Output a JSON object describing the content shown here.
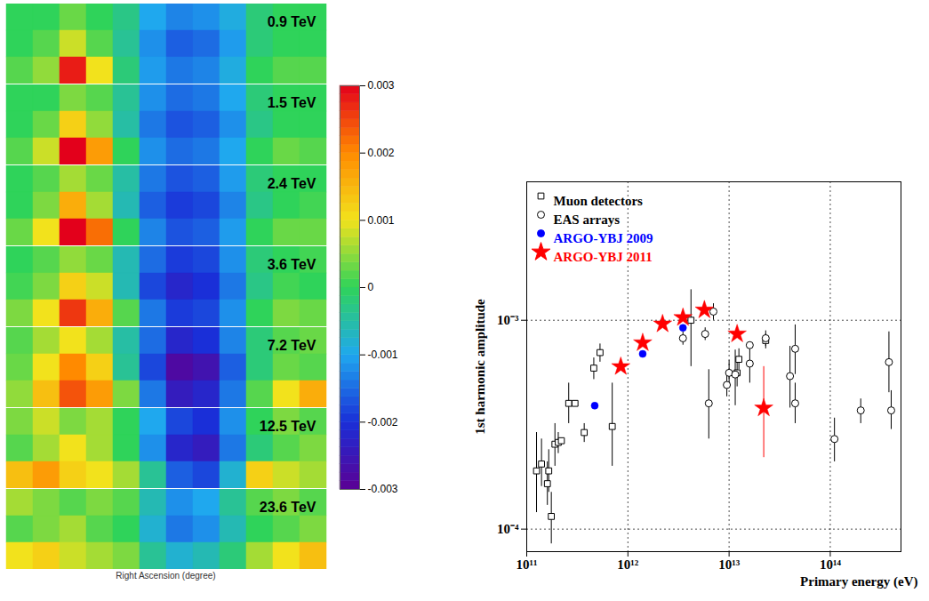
{
  "chart_data": [
    {
      "type": "heatmap",
      "xlabel": "Right Ascension (degree)",
      "tick_labels": false,
      "zlim": [
        -0.003,
        0.003
      ],
      "zticks": [
        -0.003,
        -0.002,
        -0.001,
        0,
        0.001,
        0.002,
        0.003
      ],
      "panels": [
        {
          "label": "0.9 TeV",
          "cells": [
            [
              0,
              0,
              0.0003,
              0,
              -0.0003,
              -0.001,
              -0.0013,
              -0.0012,
              -0.0009,
              -0.0002,
              0,
              0
            ],
            [
              0,
              0.0002,
              0.0008,
              0.0002,
              -0.0004,
              -0.0012,
              -0.0016,
              -0.0015,
              -0.0011,
              -0.0002,
              0,
              0
            ],
            [
              0.0002,
              0.0005,
              0.0028,
              0.001,
              -0.0002,
              -0.0011,
              -0.0014,
              -0.0013,
              -0.0009,
              0,
              0.0002,
              0.0002
            ]
          ]
        },
        {
          "label": "1.5 TeV",
          "cells": [
            [
              0,
              0,
              0.0004,
              0.0002,
              -0.0004,
              -0.0012,
              -0.0015,
              -0.0014,
              -0.001,
              -0.0002,
              0,
              0
            ],
            [
              0,
              0.0003,
              0.0012,
              0.0005,
              -0.0005,
              -0.0014,
              -0.0017,
              -0.0016,
              -0.0012,
              -0.0003,
              0,
              0
            ],
            [
              0.0002,
              0.0008,
              0.003,
              0.0018,
              0,
              -0.0012,
              -0.0015,
              -0.0014,
              -0.001,
              0,
              0.0003,
              0.0002
            ]
          ]
        },
        {
          "label": "2.4 TeV",
          "cells": [
            [
              0,
              0.0002,
              0.0006,
              0.0003,
              -0.0005,
              -0.0014,
              -0.0017,
              -0.0016,
              -0.0011,
              -0.0002,
              0,
              0
            ],
            [
              0,
              0.0004,
              0.0016,
              0.0006,
              -0.0006,
              -0.0016,
              -0.0019,
              -0.0018,
              -0.0013,
              -0.0003,
              0,
              0.0001
            ],
            [
              0.0003,
              0.001,
              0.003,
              0.0022,
              0,
              -0.0013,
              -0.0017,
              -0.0016,
              -0.0011,
              0,
              0.0003,
              0.0003
            ]
          ]
        },
        {
          "label": "3.6 TeV",
          "cells": [
            [
              0,
              0.0002,
              0.0005,
              0.0003,
              -0.0006,
              -0.0015,
              -0.0019,
              -0.0018,
              -0.0012,
              -0.0002,
              0,
              0.0001
            ],
            [
              0.0001,
              0.0004,
              0.0012,
              0.0008,
              -0.0006,
              -0.0018,
              -0.0022,
              -0.002,
              -0.0014,
              -0.0003,
              0.0001,
              0
            ],
            [
              0.0004,
              0.001,
              0.0026,
              0.0016,
              0.0002,
              -0.0014,
              -0.0019,
              -0.0018,
              -0.0012,
              0,
              0.0004,
              0.0003
            ]
          ]
        },
        {
          "label": "7.2 TeV",
          "cells": [
            [
              0.0002,
              0.0006,
              0.001,
              0.0006,
              -0.0005,
              -0.0015,
              -0.0022,
              -0.002,
              -0.0013,
              -0.0002,
              0.0002,
              0.0003
            ],
            [
              0.0003,
              0.001,
              0.002,
              0.0012,
              -0.0004,
              -0.0018,
              -0.0028,
              -0.0026,
              -0.0016,
              -0.0002,
              0.0003,
              0.0002
            ],
            [
              0.0005,
              0.0014,
              0.0024,
              0.0018,
              0.0004,
              -0.0014,
              -0.0024,
              -0.0022,
              -0.0014,
              0.0002,
              0.001,
              0.0016
            ]
          ]
        },
        {
          "label": "12.5 TeV",
          "cells": [
            [
              0.0004,
              0.0008,
              0.0004,
              0.0006,
              0,
              -0.001,
              -0.0018,
              -0.002,
              -0.0012,
              0,
              0.0004,
              0.0002
            ],
            [
              0.0002,
              0.0006,
              0.001,
              0.0006,
              0,
              -0.0012,
              -0.0022,
              -0.0024,
              -0.0014,
              -0.0002,
              0.0002,
              0.0004
            ],
            [
              0.0014,
              0.0018,
              0.0012,
              0.001,
              0.0006,
              -0.0004,
              -0.0016,
              -0.0018,
              -0.0008,
              0.0012,
              0.0008,
              0.0006
            ]
          ]
        },
        {
          "label": "23.6 TeV",
          "cells": [
            [
              0.0006,
              0.0004,
              0.0002,
              0.0004,
              0.0002,
              -0.0006,
              -0.0012,
              -0.001,
              -0.0004,
              0.0002,
              0.0004,
              0.0002
            ],
            [
              0.0002,
              0.0004,
              0.0006,
              0.0002,
              0,
              -0.0008,
              -0.0014,
              -0.0012,
              -0.0006,
              0,
              0.0002,
              0.0004
            ],
            [
              0.001,
              0.0012,
              0.0008,
              0.0006,
              0.0004,
              -0.0004,
              -0.0008,
              -0.0006,
              -0.0002,
              0.0006,
              0.001,
              0.0014
            ]
          ]
        }
      ]
    },
    {
      "type": "scatter",
      "log": true,
      "grid": true,
      "legend": "top-left",
      "xlabel": "Primary energy (eV)",
      "ylabel": "1st harmonic amplitude",
      "xlim": [
        100000000000.0,
        500000000000000.0
      ],
      "ylim": [
        7.8e-05,
        0.0046
      ],
      "xticks": [
        {
          "value": 100000000000.0,
          "label": "10¹¹"
        },
        {
          "value": 1000000000000.0,
          "label": "10¹²"
        },
        {
          "value": 10000000000000.0,
          "label": "10¹³"
        },
        {
          "value": 100000000000000.0,
          "label": "10¹⁴"
        }
      ],
      "yticks": [
        {
          "value": 0.0001,
          "label": "10⁻⁴"
        },
        {
          "value": 0.001,
          "label": "10⁻³"
        }
      ],
      "series": [
        {
          "name": "Muon detectors",
          "marker": "square-open",
          "color": "#000000",
          "x": [
            125000000000.0,
            140000000000.0,
            160000000000.0,
            165000000000.0,
            175000000000.0,
            190000000000.0,
            205000000000.0,
            220000000000.0,
            260000000000.0,
            300000000000.0,
            370000000000.0,
            460000000000.0,
            530000000000.0,
            700000000000.0,
            4200000000000.0,
            12000000000000.0,
            12500000000000.0,
            23000000000000.0
          ],
          "values": [
            0.00019,
            0.000205,
            0.000165,
            0.00019,
            0.000115,
            0.000255,
            0.00026,
            0.000265,
            0.0004,
            0.0004,
            0.00029,
            0.00059,
            0.0007,
            0.00031,
            0.001,
            0.00056,
            0.00065,
            0.0008
          ],
          "ylow": [
            0.00012,
            0.00016,
            0.00013,
            0.00015,
            8.5e-05,
            0.0002,
            0.00023,
            null,
            0.00032,
            null,
            0.00026,
            0.00052,
            0.00063,
            0.0002,
            0.0006,
            0.00048,
            0.00058,
            0.00073
          ],
          "yhigh": [
            0.00029,
            0.00027,
            0.00021,
            0.00024,
            0.00015,
            0.00032,
            0.00029,
            null,
            0.0005,
            null,
            0.00032,
            0.00066,
            0.00077,
            0.0005,
            0.0014,
            0.00065,
            0.00073,
            0.00086
          ]
        },
        {
          "name": "EAS arrays",
          "marker": "circle-open",
          "color": "#000000",
          "x": [
            3500000000000.0,
            5800000000000.0,
            6300000000000.0,
            7000000000000.0,
            9500000000000.0,
            10000000000000.0,
            11500000000000.0,
            16000000000000.0,
            16000000000000.0,
            23000000000000.0,
            40000000000000.0,
            45000000000000.0,
            45000000000000.0,
            110000000000000.0,
            200000000000000.0,
            380000000000000.0,
            400000000000000.0
          ],
          "values": [
            0.00082,
            0.00086,
            0.0004,
            0.0011,
            0.00049,
            0.00056,
            0.00055,
            0.00076,
            0.00062,
            0.00082,
            0.00054,
            0.00073,
            0.0004,
            0.00027,
            0.00037,
            0.00063,
            0.00037
          ],
          "ylow": [
            0.00076,
            0.0008,
            0.00027,
            0.001,
            0.00043,
            0.00048,
            0.00039,
            null,
            0.0005,
            0.00075,
            0.00038,
            0.00055,
            0.00032,
            0.00021,
            0.00032,
            0.00045,
            0.0003
          ],
          "yhigh": [
            0.00088,
            0.00092,
            0.00058,
            0.0012,
            0.00055,
            0.00064,
            0.00072,
            null,
            0.00074,
            0.00089,
            0.00075,
            0.00095,
            0.0005,
            0.00034,
            0.00042,
            0.00088,
            0.00046
          ]
        },
        {
          "name": "ARGO-YBJ 2009",
          "marker": "circle",
          "color": "#0000ff",
          "x": [
            470000000000.0,
            1400000000000.0,
            3500000000000.0
          ],
          "values": [
            0.00039,
            0.00069,
            0.00092
          ],
          "ylow": [
            null,
            null,
            null
          ],
          "yhigh": [
            null,
            null,
            null
          ]
        },
        {
          "name": "ARGO-YBJ 2011",
          "marker": "star",
          "color": "#ff0000",
          "x": [
            850000000000.0,
            1400000000000.0,
            2200000000000.0,
            3500000000000.0,
            5700000000000.0,
            12000000000000.0,
            22000000000000.0
          ],
          "values": [
            0.0006,
            0.00078,
            0.00096,
            0.00103,
            0.00112,
            0.00086,
            0.00038
          ],
          "ylow": [
            null,
            null,
            null,
            null,
            null,
            null,
            0.00022
          ],
          "yhigh": [
            null,
            null,
            null,
            null,
            null,
            null,
            0.0006
          ]
        }
      ]
    }
  ]
}
